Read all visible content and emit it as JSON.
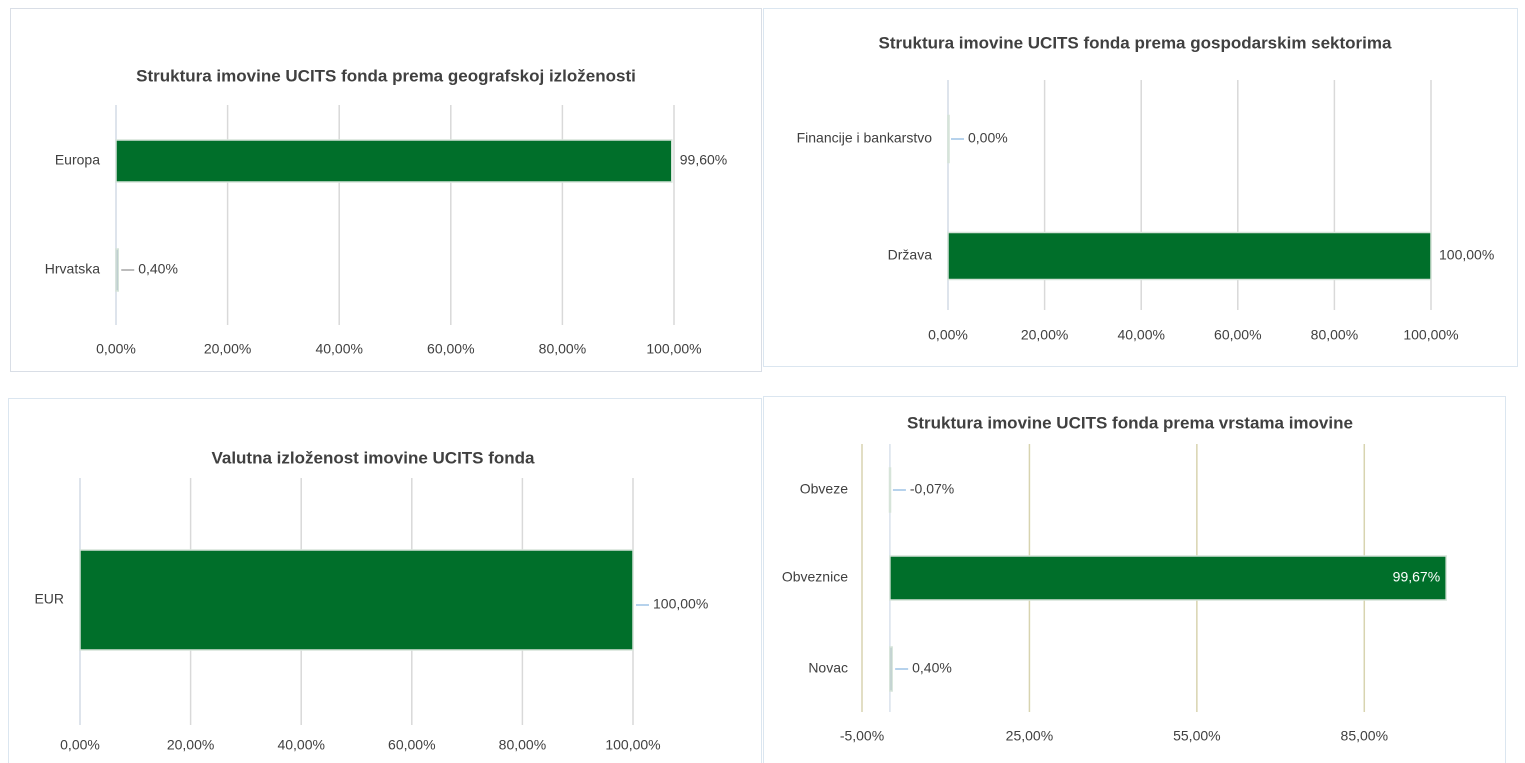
{
  "chart_data": [
    {
      "type": "bar",
      "orientation": "horizontal",
      "title": "Struktura imovine UCITS fonda prema geografskoj izloženosti",
      "categories": [
        "Europa",
        "Hrvatska"
      ],
      "values": [
        99.6,
        0.4
      ],
      "value_labels": [
        "99,60%",
        "0,40%"
      ],
      "color": "#006f2a",
      "xlim": [
        0,
        100
      ],
      "xticks": [
        {
          "value": 0,
          "label": "0,00%"
        },
        {
          "value": 20,
          "label": "20,00%"
        },
        {
          "value": 40,
          "label": "40,00%"
        },
        {
          "value": 60,
          "label": "60,00%"
        },
        {
          "value": 80,
          "label": "80,00%"
        },
        {
          "value": 100,
          "label": "100,00%"
        }
      ],
      "grid": true
    },
    {
      "type": "bar",
      "orientation": "horizontal",
      "title": "Struktura imovine UCITS fonda prema gospodarskim sektorima",
      "categories": [
        "Financije i bankarstvo",
        "Država"
      ],
      "values": [
        0,
        100
      ],
      "value_labels": [
        "0,00%",
        "100,00%"
      ],
      "color": "#006f2a",
      "xlim": [
        0,
        100
      ],
      "xticks": [
        {
          "value": 0,
          "label": "0,00%"
        },
        {
          "value": 20,
          "label": "20,00%"
        },
        {
          "value": 40,
          "label": "40,00%"
        },
        {
          "value": 60,
          "label": "60,00%"
        },
        {
          "value": 80,
          "label": "80,00%"
        },
        {
          "value": 100,
          "label": "100,00%"
        }
      ],
      "grid": true
    },
    {
      "type": "bar",
      "orientation": "horizontal",
      "title": "Valutna izloženost imovine UCITS fonda",
      "categories": [
        "EUR"
      ],
      "values": [
        100
      ],
      "value_labels": [
        "100,00%"
      ],
      "color": "#006f2a",
      "xlim": [
        0,
        100
      ],
      "xticks": [
        {
          "value": 0,
          "label": "0,00%"
        },
        {
          "value": 20,
          "label": "20,00%"
        },
        {
          "value": 40,
          "label": "40,00%"
        },
        {
          "value": 60,
          "label": "60,00%"
        },
        {
          "value": 80,
          "label": "80,00%"
        },
        {
          "value": 100,
          "label": "100,00%"
        }
      ],
      "grid": true
    },
    {
      "type": "bar",
      "orientation": "horizontal",
      "title": "Struktura imovine UCITS fonda prema vrstama imovine",
      "categories": [
        "Obveze",
        "Obveznice",
        "Novac"
      ],
      "values": [
        -0.07,
        99.67,
        0.4
      ],
      "value_labels": [
        "-0,07%",
        "99,67%",
        "0,40%"
      ],
      "color": "#006f2a",
      "xlim": [
        -5,
        100
      ],
      "xticks": [
        {
          "value": -5,
          "label": "-5,00%"
        },
        {
          "value": 25,
          "label": "25,00%"
        },
        {
          "value": 55,
          "label": "55,00%"
        },
        {
          "value": 85,
          "label": "85,00%"
        }
      ],
      "grid": true
    }
  ]
}
